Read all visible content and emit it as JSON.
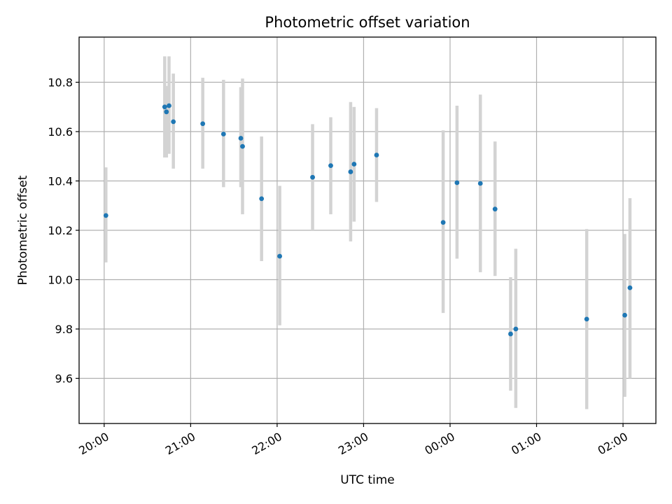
{
  "chart_data": {
    "type": "scatter",
    "title": "Photometric offset variation",
    "xlabel": "UTC time",
    "ylabel": "Photometric offset",
    "grid": true,
    "x_unit": "hours since 20:00 UTC",
    "xlim": [
      -0.29,
      6.38
    ],
    "ylim": [
      9.417,
      10.983
    ],
    "x_ticks": [
      {
        "value": 0,
        "label": "20:00"
      },
      {
        "value": 1,
        "label": "21:00"
      },
      {
        "value": 2,
        "label": "22:00"
      },
      {
        "value": 3,
        "label": "23:00"
      },
      {
        "value": 4,
        "label": "00:00"
      },
      {
        "value": 5,
        "label": "01:00"
      },
      {
        "value": 6,
        "label": "02:00"
      }
    ],
    "y_ticks": [
      {
        "value": 9.6,
        "label": "9.6"
      },
      {
        "value": 9.8,
        "label": "9.8"
      },
      {
        "value": 10.0,
        "label": "10.0"
      },
      {
        "value": 10.2,
        "label": "10.2"
      },
      {
        "value": 10.4,
        "label": "10.4"
      },
      {
        "value": 10.6,
        "label": "10.6"
      },
      {
        "value": 10.8,
        "label": "10.8"
      }
    ],
    "series": [
      {
        "marker_color": "#1f77b4",
        "errorbar_color": "#d3d3d3",
        "points": [
          {
            "x": 0.02,
            "y": 10.26,
            "lo": 10.07,
            "hi": 10.455
          },
          {
            "x": 0.7,
            "y": 10.7,
            "lo": 10.495,
            "hi": 10.905
          },
          {
            "x": 0.72,
            "y": 10.68,
            "lo": 10.495,
            "hi": 10.785
          },
          {
            "x": 0.75,
            "y": 10.705,
            "lo": 10.51,
            "hi": 10.905
          },
          {
            "x": 0.8,
            "y": 10.64,
            "lo": 10.45,
            "hi": 10.835
          },
          {
            "x": 1.14,
            "y": 10.632,
            "lo": 10.45,
            "hi": 10.818
          },
          {
            "x": 1.38,
            "y": 10.59,
            "lo": 10.375,
            "hi": 10.81
          },
          {
            "x": 1.58,
            "y": 10.573,
            "lo": 10.375,
            "hi": 10.78
          },
          {
            "x": 1.6,
            "y": 10.54,
            "lo": 10.265,
            "hi": 10.815
          },
          {
            "x": 1.82,
            "y": 10.328,
            "lo": 10.075,
            "hi": 10.58
          },
          {
            "x": 2.03,
            "y": 10.095,
            "lo": 9.815,
            "hi": 10.38
          },
          {
            "x": 2.41,
            "y": 10.415,
            "lo": 10.2,
            "hi": 10.63
          },
          {
            "x": 2.62,
            "y": 10.462,
            "lo": 10.265,
            "hi": 10.658
          },
          {
            "x": 2.85,
            "y": 10.437,
            "lo": 10.155,
            "hi": 10.72
          },
          {
            "x": 2.89,
            "y": 10.468,
            "lo": 10.235,
            "hi": 10.7
          },
          {
            "x": 3.15,
            "y": 10.505,
            "lo": 10.315,
            "hi": 10.695
          },
          {
            "x": 3.92,
            "y": 10.232,
            "lo": 9.865,
            "hi": 10.605
          },
          {
            "x": 4.08,
            "y": 10.393,
            "lo": 10.085,
            "hi": 10.705
          },
          {
            "x": 4.35,
            "y": 10.39,
            "lo": 10.03,
            "hi": 10.75
          },
          {
            "x": 4.52,
            "y": 10.286,
            "lo": 10.015,
            "hi": 10.56
          },
          {
            "x": 4.7,
            "y": 9.78,
            "lo": 9.55,
            "hi": 10.01
          },
          {
            "x": 4.76,
            "y": 9.8,
            "lo": 9.48,
            "hi": 10.125
          },
          {
            "x": 5.58,
            "y": 9.84,
            "lo": 9.475,
            "hi": 10.205
          },
          {
            "x": 6.02,
            "y": 9.856,
            "lo": 9.525,
            "hi": 10.185
          },
          {
            "x": 6.08,
            "y": 9.967,
            "lo": 9.6,
            "hi": 10.33
          }
        ]
      }
    ]
  }
}
